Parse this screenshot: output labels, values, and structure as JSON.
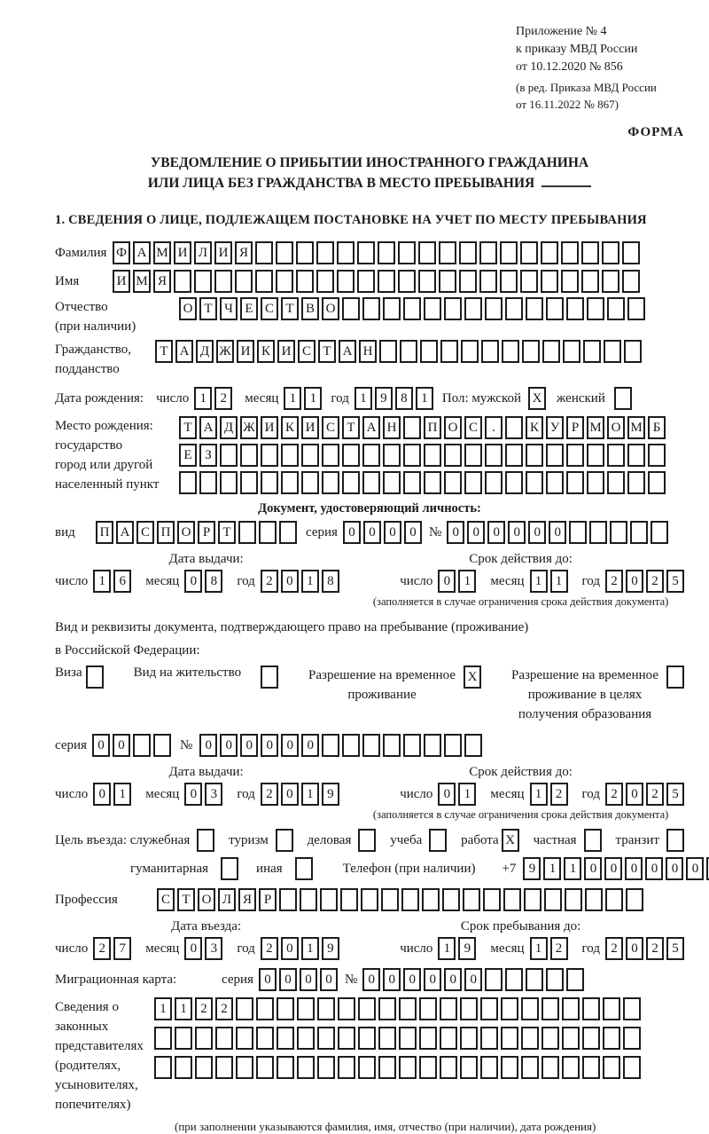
{
  "header": {
    "annex_lines": [
      "Приложение № 4",
      "к приказу МВД России",
      "от 10.12.2020 № 856"
    ],
    "amendment_lines": [
      "(в ред. Приказа МВД России",
      "от 16.11.2022 № 867)"
    ],
    "form_label": "ФОРМА"
  },
  "title": {
    "line1": "УВЕДОМЛЕНИЕ О ПРИБЫТИИ ИНОСТРАННОГО ГРАЖДАНИНА",
    "line2": "ИЛИ ЛИЦА БЕЗ ГРАЖДАНСТВА В МЕСТО ПРЕБЫВАНИЯ"
  },
  "section1_heading": "1. СВЕДЕНИЯ О ЛИЦЕ, ПОДЛЕЖАЩЕМ ПОСТАНОВКЕ НА УЧЕТ ПО МЕСТУ ПРЕБЫВАНИЯ",
  "labels": {
    "surname": "Фамилия",
    "name": "Имя",
    "patronymic_l1": "Отчество",
    "patronymic_l2": "(при наличии)",
    "citizenship_l1": "Гражданство,",
    "citizenship_l2": "подданство",
    "birth_date": "Дата рождения:",
    "day": "число",
    "month": "месяц",
    "year": "год",
    "sex_male": "Пол: мужской",
    "sex_female": "женский",
    "birth_place_l1": "Место рождения:",
    "birth_place_l2": "государство",
    "birth_place_l3": "город или другой",
    "birth_place_l4": "населенный пункт",
    "identity_doc_heading": "Документ, удостоверяющий личность:",
    "doc_type": "вид",
    "series": "серия",
    "number": "№",
    "issue_date": "Дата выдачи:",
    "valid_until": "Срок действия до:",
    "valid_note": "(заполняется в случае ограничения срока действия документа)",
    "residence_doc_l1": "Вид и реквизиты документа, подтверждающего право на пребывание (проживание)",
    "residence_doc_l2": "в Российской Федерации:",
    "visa": "Виза",
    "residence_permit": "Вид на жительство",
    "temp_residence_l1": "Разрешение на временное",
    "temp_residence_l2": "проживание",
    "temp_residence_edu_l1": "Разрешение на временное",
    "temp_residence_edu_l2": "проживание в целях",
    "temp_residence_edu_l3": "получения образования",
    "purpose": "Цель въезда: служебная",
    "tourism": "туризм",
    "business": "деловая",
    "study": "учеба",
    "work": "работа",
    "private": "частная",
    "transit": "транзит",
    "humanitarian": "гуманитарная",
    "other": "иная",
    "phone": "Телефон (при наличии)",
    "phone_prefix": "+7",
    "profession": "Профессия",
    "entry_date": "Дата въезда:",
    "stay_until": "Срок пребывания до:",
    "migration_card": "Миграционная карта:",
    "representatives_l1": "Сведения о",
    "representatives_l2": "законных",
    "representatives_l3": "представителях",
    "representatives_l4": "(родителях,",
    "representatives_l5": "усыновителях,",
    "representatives_l6": "попечителях)",
    "representatives_note": "(при заполнении указываются фамилия, имя, отчество (при наличии), дата рождения)"
  },
  "fields": {
    "surname": {
      "value": "ФАМИЛИЯ",
      "count": 26
    },
    "name": {
      "value": "ИМЯ",
      "count": 26
    },
    "patronymic": {
      "value": "ОТЧЕСТВО",
      "count": 23
    },
    "citizenship": {
      "value": "ТАДЖИКИСТАН",
      "count": 24
    },
    "birth_day": {
      "value": "12",
      "count": 2
    },
    "birth_month": {
      "value": "11",
      "count": 2
    },
    "birth_year": {
      "value": "1981",
      "count": 4
    },
    "sex_male": {
      "value": "X",
      "count": 1
    },
    "sex_female": {
      "value": "",
      "count": 1
    },
    "birth_place_row1": {
      "value": "ТАДЖИКИСТАН ПОС. КУРМОМБ",
      "count": 24
    },
    "birth_place_row2": {
      "value": "ЕЗ",
      "count": 24
    },
    "birth_place_row3": {
      "value": "",
      "count": 24
    },
    "doc_type": {
      "value": "ПАСПОРТ",
      "count": 10
    },
    "doc_series": {
      "value": "0000",
      "count": 4
    },
    "doc_number": {
      "value": "000000",
      "count": 11
    },
    "doc_issue_day": {
      "value": "16",
      "count": 2
    },
    "doc_issue_month": {
      "value": "08",
      "count": 2
    },
    "doc_issue_year": {
      "value": "2018",
      "count": 4
    },
    "doc_valid_day": {
      "value": "01",
      "count": 2
    },
    "doc_valid_month": {
      "value": "11",
      "count": 2
    },
    "doc_valid_year": {
      "value": "2025",
      "count": 4
    },
    "visa_cb": {
      "value": "",
      "count": 1
    },
    "residence_permit_cb": {
      "value": "",
      "count": 1
    },
    "temp_residence_cb": {
      "value": "X",
      "count": 1
    },
    "temp_residence_edu_cb": {
      "value": "",
      "count": 1
    },
    "permit_series": {
      "value": "00",
      "count": 4
    },
    "permit_number": {
      "value": "000000",
      "count": 14
    },
    "permit_issue_day": {
      "value": "01",
      "count": 2
    },
    "permit_issue_month": {
      "value": "03",
      "count": 2
    },
    "permit_issue_year": {
      "value": "2019",
      "count": 4
    },
    "permit_valid_day": {
      "value": "01",
      "count": 2
    },
    "permit_valid_month": {
      "value": "12",
      "count": 2
    },
    "permit_valid_year": {
      "value": "2025",
      "count": 4
    },
    "purpose_official_cb": {
      "value": "",
      "count": 1
    },
    "purpose_tourism_cb": {
      "value": "",
      "count": 1
    },
    "purpose_business_cb": {
      "value": "",
      "count": 1
    },
    "purpose_study_cb": {
      "value": "",
      "count": 1
    },
    "purpose_work_cb": {
      "value": "X",
      "count": 1
    },
    "purpose_private_cb": {
      "value": "",
      "count": 1
    },
    "purpose_transit_cb": {
      "value": "",
      "count": 1
    },
    "purpose_humanitarian_cb": {
      "value": "",
      "count": 1
    },
    "purpose_other_cb": {
      "value": "",
      "count": 1
    },
    "phone": {
      "value": "911000000",
      "count": 10
    },
    "profession": {
      "value": "СТОЛЯР",
      "count": 24
    },
    "entry_day": {
      "value": "27",
      "count": 2
    },
    "entry_month": {
      "value": "03",
      "count": 2
    },
    "entry_year": {
      "value": "2019",
      "count": 4
    },
    "stay_day": {
      "value": "19",
      "count": 2
    },
    "stay_month": {
      "value": "12",
      "count": 2
    },
    "stay_year": {
      "value": "2025",
      "count": 4
    },
    "mc_series": {
      "value": "0000",
      "count": 4
    },
    "mc_number": {
      "value": "000000",
      "count": 11
    },
    "rep_row1": {
      "value": "1122",
      "count": 24
    },
    "rep_row2": {
      "value": "",
      "count": 24
    },
    "rep_row3": {
      "value": "",
      "count": 24
    }
  },
  "colors": {
    "ink": "#1a1a1a",
    "paper": "#ffffff"
  }
}
